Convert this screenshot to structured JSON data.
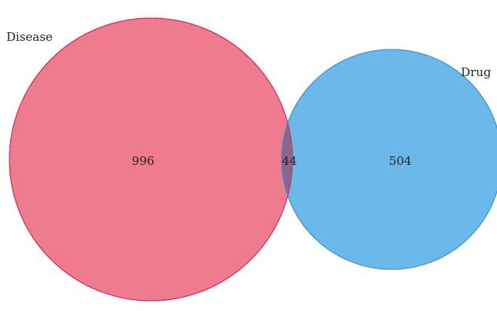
{
  "venn": {
    "sets": [
      {
        "label": "Disease",
        "fill": "#ef7b8e",
        "stroke": "#d9264e"
      },
      {
        "label": "Drug",
        "fill": "#6ab9ea",
        "stroke": "#3a8fd0"
      }
    ],
    "regions": {
      "disease_only": "996",
      "intersection": "44",
      "drug_only": "504"
    },
    "intersection_fill": "#8a6690"
  }
}
